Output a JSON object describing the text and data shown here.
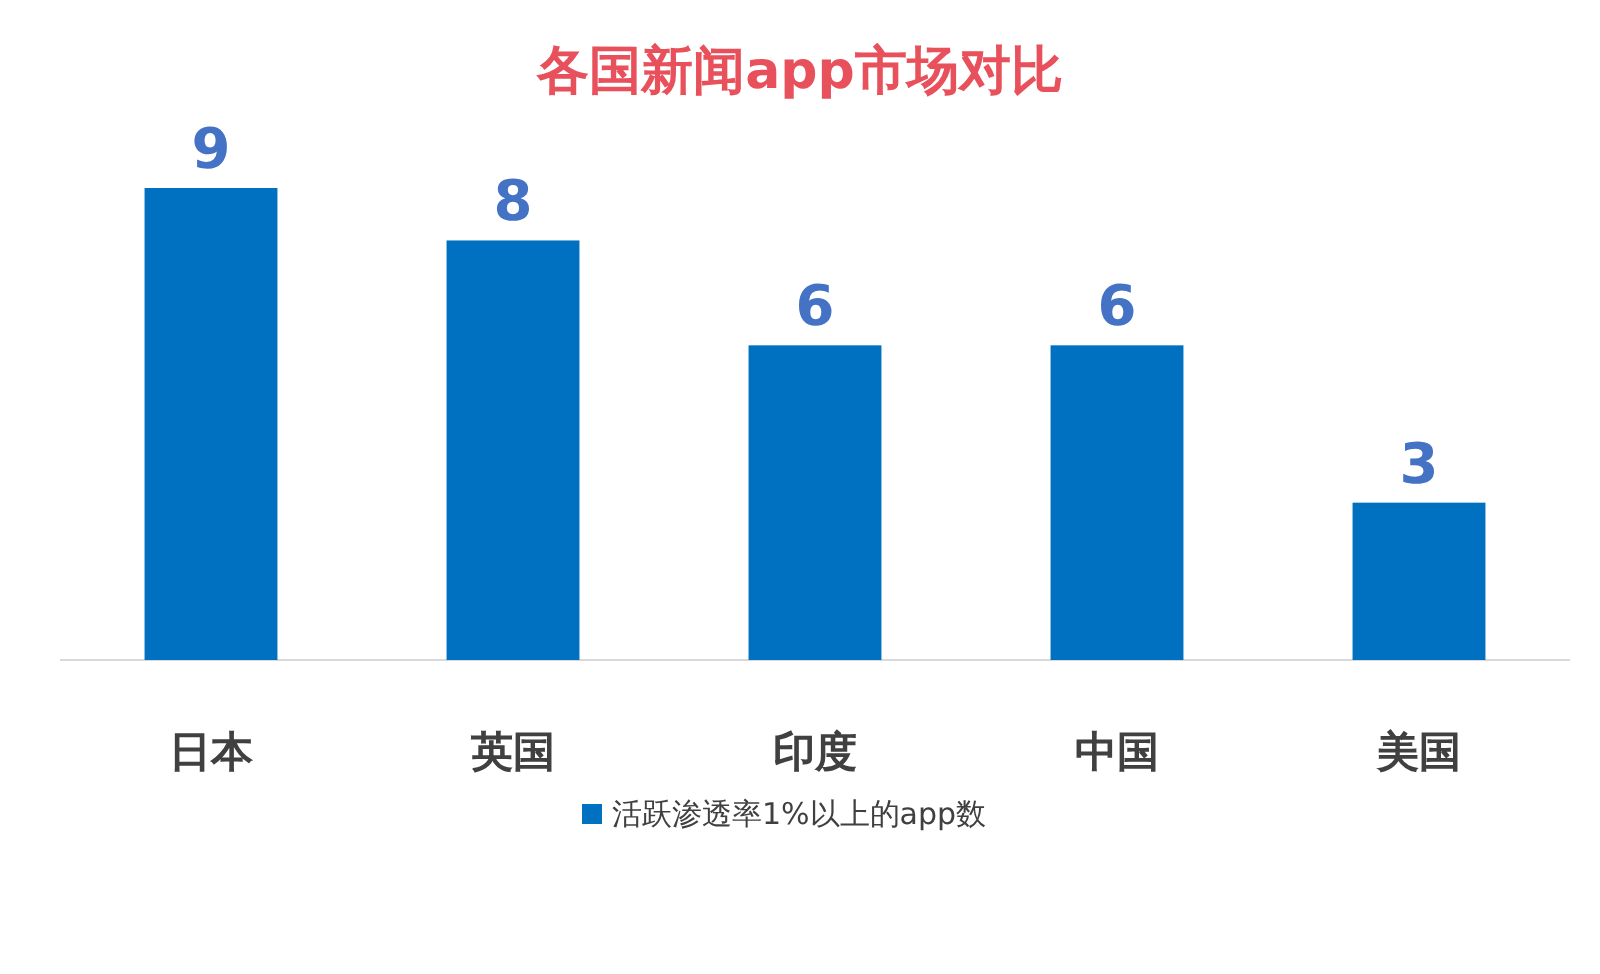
{
  "chart_data": {
    "type": "bar",
    "title": "各国新闻app市场对比",
    "categories": [
      "日本",
      "英国",
      "印度",
      "中国",
      "美国"
    ],
    "series": [
      {
        "name": "活跃渗透率1%以上的app数",
        "color": "#0070c0",
        "values": [
          9,
          8,
          6,
          6,
          3
        ]
      }
    ],
    "data_labels": true,
    "legend": "bottom"
  }
}
